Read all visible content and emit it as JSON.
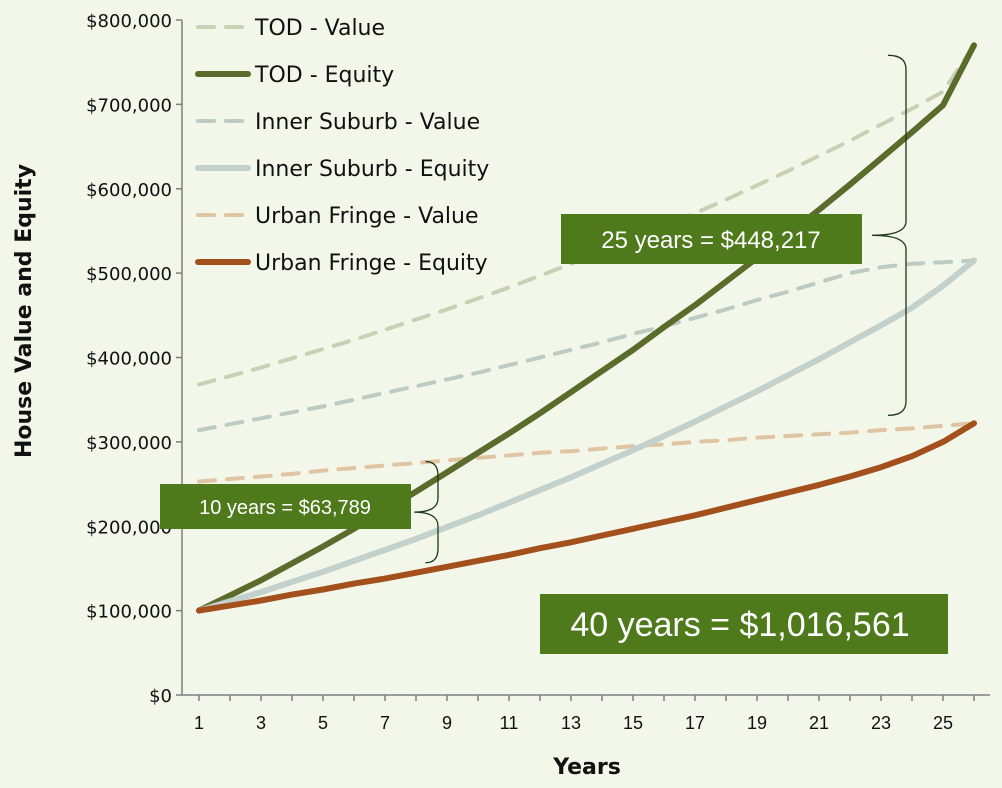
{
  "chart_data": {
    "type": "line",
    "title": "",
    "xlabel": "Years",
    "ylabel": "House Value and Equity",
    "xlim": [
      1,
      26
    ],
    "ylim": [
      0,
      800000
    ],
    "x_ticks": [
      "1",
      "3",
      "5",
      "7",
      "9",
      "11",
      "13",
      "15",
      "17",
      "19",
      "21",
      "23",
      "25"
    ],
    "y_ticks": [
      "$0",
      "$100,000",
      "$200,000",
      "$300,000",
      "$400,000",
      "$500,000",
      "$600,000",
      "$700,000",
      "$800,000"
    ],
    "grid": false,
    "legend_position": "top-left",
    "x": [
      1,
      2,
      3,
      4,
      5,
      6,
      7,
      8,
      9,
      10,
      11,
      12,
      13,
      14,
      15,
      16,
      17,
      18,
      19,
      20,
      21,
      22,
      23,
      24,
      25,
      26
    ],
    "series": [
      {
        "name": "TOD - Value",
        "style": "dashed",
        "color": "#c9d1b4",
        "values": [
          368000,
          378000,
          388000,
          399000,
          410000,
          421000,
          433000,
          445000,
          457000,
          470000,
          483000,
          497000,
          511000,
          525000,
          540000,
          555000,
          571000,
          587000,
          604000,
          621000,
          639000,
          657000,
          676000,
          695000,
          715000,
          770000
        ]
      },
      {
        "name": "TOD - Equity",
        "style": "solid",
        "color": "#5a6b2c",
        "values": [
          100000,
          118000,
          136000,
          156000,
          176000,
          197000,
          219000,
          241000,
          264000,
          287000,
          310000,
          334000,
          359000,
          384000,
          409000,
          436000,
          462000,
          490000,
          518000,
          546000,
          575000,
          605000,
          636000,
          667000,
          699000,
          770000
        ]
      },
      {
        "name": "Inner Suburb - Value",
        "style": "dashed",
        "color": "#bccbc4",
        "values": [
          314000,
          321000,
          328000,
          335000,
          342000,
          350000,
          358000,
          366000,
          374000,
          382000,
          391000,
          400000,
          409000,
          418000,
          428000,
          437000,
          447000,
          457000,
          468000,
          478000,
          489000,
          500000,
          507000,
          511000,
          513000,
          515000
        ]
      },
      {
        "name": "Inner Suburb - Equity",
        "style": "solid",
        "color": "#c2d1cb",
        "values": [
          100000,
          111000,
          122000,
          134000,
          146000,
          159000,
          172000,
          185000,
          199000,
          213000,
          228000,
          243000,
          258000,
          274000,
          290000,
          307000,
          324000,
          342000,
          360000,
          379000,
          398000,
          418000,
          438000,
          459000,
          485000,
          515000
        ]
      },
      {
        "name": "Urban Fringe - Value",
        "style": "dashed",
        "color": "#dfc5a3",
        "values": [
          253000,
          256000,
          259000,
          262000,
          266000,
          269000,
          272000,
          275000,
          278000,
          281000,
          284000,
          287000,
          289000,
          292000,
          295000,
          297000,
          300000,
          302000,
          305000,
          307000,
          309000,
          311000,
          314000,
          316000,
          319000,
          322000
        ]
      },
      {
        "name": "Urban Fringe - Equity",
        "style": "solid",
        "color": "#a4501c",
        "values": [
          100000,
          106000,
          112000,
          119000,
          125000,
          132000,
          138000,
          145000,
          152000,
          159000,
          166000,
          174000,
          181000,
          189000,
          197000,
          205000,
          213000,
          222000,
          231000,
          240000,
          249000,
          259000,
          270000,
          283000,
          300000,
          322000
        ]
      }
    ],
    "annotations": [
      {
        "text": "25 years = $448,217",
        "at_x": 26,
        "from_y": 322000,
        "to_y": 770000
      },
      {
        "text": "10 years = $63,789",
        "at_x": 9,
        "from_y": 152000,
        "to_y": 272000
      },
      {
        "text": "40 years = $1,016,561"
      }
    ]
  }
}
